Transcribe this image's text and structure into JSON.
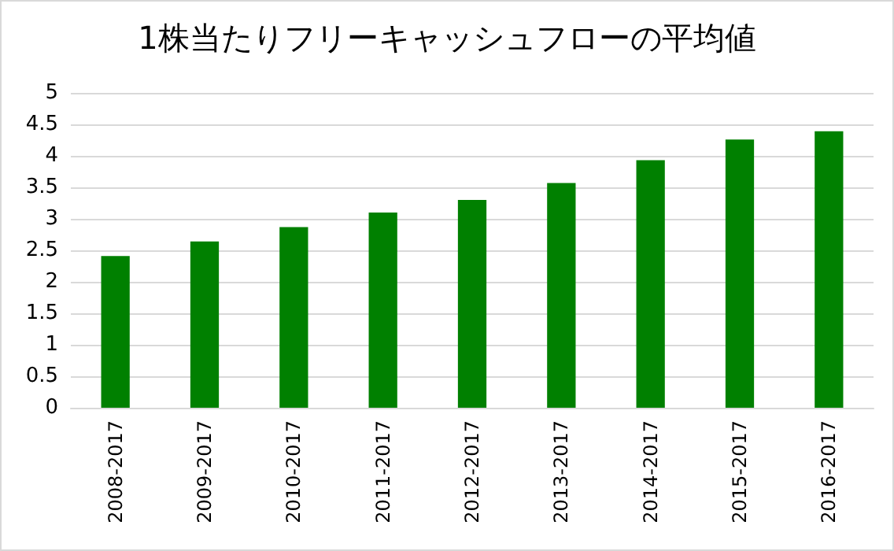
{
  "chart_data": {
    "type": "bar",
    "title": "1株当たりフリーキャッシュフローの平均値",
    "categories": [
      "2008-2017",
      "2009-2017",
      "2010-2017",
      "2011-2017",
      "2012-2017",
      "2013-2017",
      "2014-2017",
      "2015-2017",
      "2016-2017"
    ],
    "values": [
      2.41,
      2.64,
      2.87,
      3.1,
      3.3,
      3.57,
      3.93,
      4.26,
      4.39
    ],
    "color": "#008000",
    "ylim": [
      0,
      5
    ],
    "yticks": [
      0,
      0.5,
      1,
      1.5,
      2,
      2.5,
      3,
      3.5,
      4,
      4.5,
      5
    ],
    "grid": "y"
  }
}
